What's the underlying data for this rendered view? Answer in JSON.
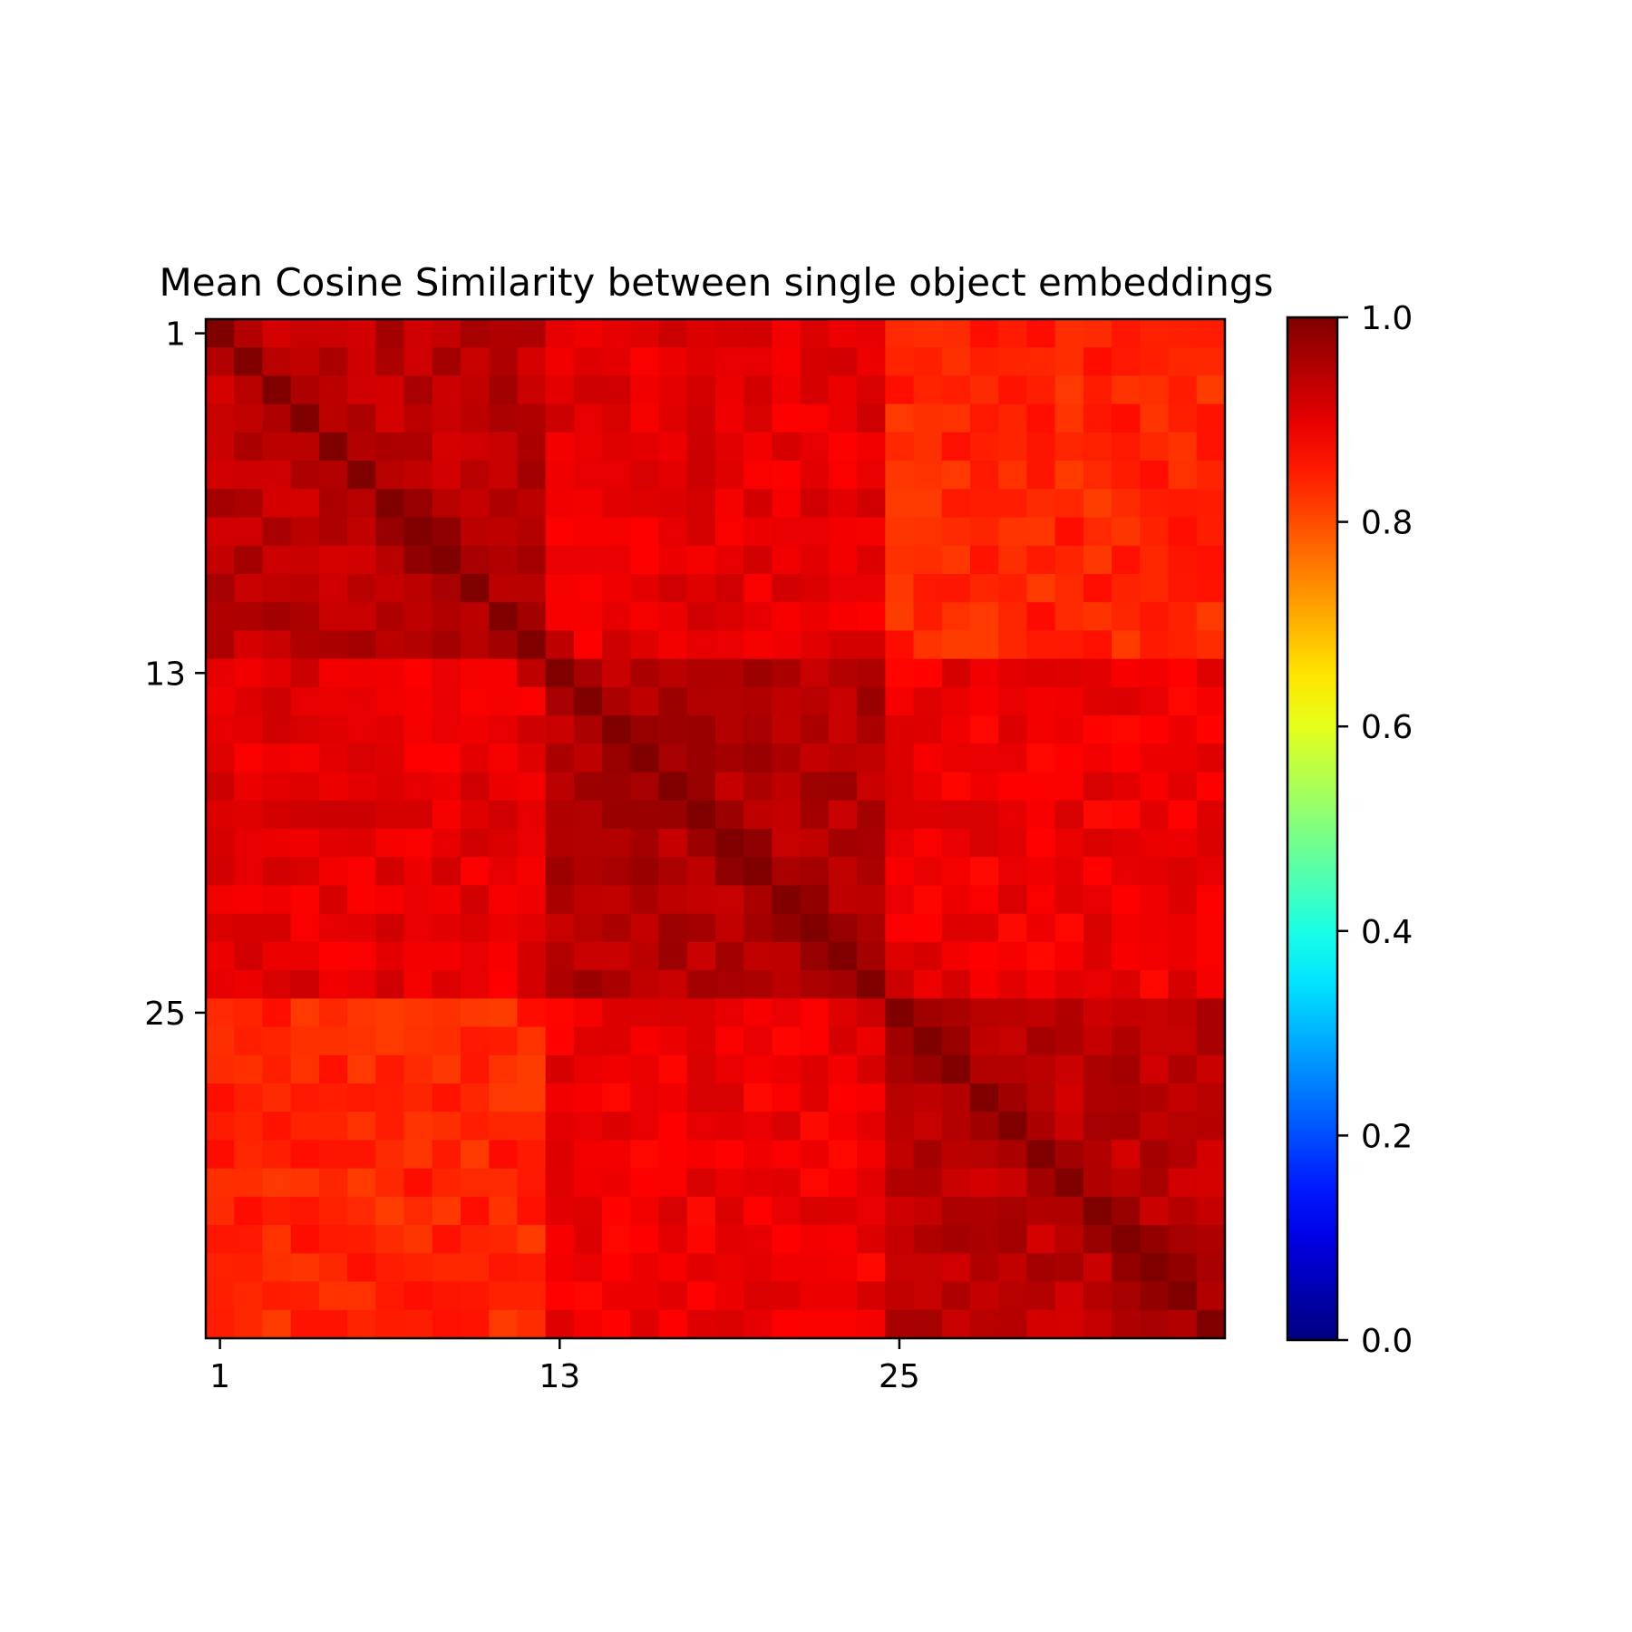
{
  "chart_data": {
    "type": "heatmap",
    "title": "Mean Cosine Similarity between single object embeddings",
    "xlabel": "",
    "ylabel": "",
    "colormap": "jet",
    "size": 36,
    "x_tick_labels": [
      "1",
      "13",
      "25"
    ],
    "x_tick_indices": [
      1,
      13,
      25
    ],
    "y_tick_labels": [
      "1",
      "13",
      "25"
    ],
    "y_tick_indices": [
      1,
      13,
      25
    ],
    "colorbar": {
      "range": [
        0.0,
        1.0
      ],
      "tick_values": [
        0.0,
        0.2,
        0.4,
        0.6,
        0.8,
        1.0
      ],
      "tick_labels": [
        "0.0",
        "0.2",
        "0.4",
        "0.6",
        "0.8",
        "1.0"
      ]
    },
    "block_boundaries": [
      1,
      13,
      25,
      37
    ],
    "block_means": [
      [
        0.94,
        0.9,
        0.84
      ],
      [
        0.9,
        0.95,
        0.89
      ],
      [
        0.84,
        0.89,
        0.94
      ]
    ],
    "diagonal_value": 1.0,
    "grid": false,
    "legend": "colorbar-right"
  }
}
